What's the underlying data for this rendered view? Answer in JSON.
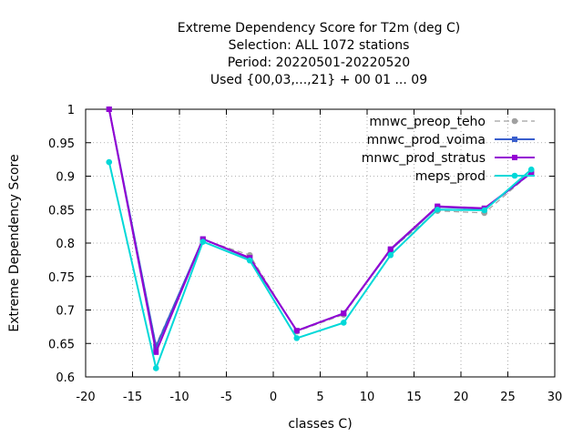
{
  "chart_data": {
    "type": "line",
    "title_lines": [
      "Extreme Dependency Score  for T2m (deg C)",
      "Selection: ALL    1072 stations",
      "Period: 20220501-20220520",
      "Used {00,03,...,21} + 00 01 ... 09"
    ],
    "xlabel": "classes C)",
    "ylabel": "Extreme Dependency Score",
    "xlim": [
      -20,
      30
    ],
    "ylim": [
      0.6,
      1.0
    ],
    "xticks": [
      -20,
      -15,
      -10,
      -5,
      0,
      5,
      10,
      15,
      20,
      25,
      30
    ],
    "yticks": [
      0.6,
      0.65,
      0.7,
      0.75,
      0.8,
      0.85,
      0.9,
      0.95,
      1.0
    ],
    "xtick_labels": [
      "-20",
      "-15",
      "-10",
      "-5",
      "0",
      "5",
      "10",
      "15",
      "20",
      "25",
      "30"
    ],
    "ytick_labels": [
      "0.6",
      "0.65",
      "0.7",
      "0.75",
      "0.8",
      "0.85",
      "0.9",
      "0.95",
      "1"
    ],
    "grid": true,
    "legend_position": "top-right",
    "x": [
      -17.5,
      -12.5,
      -7.5,
      -2.5,
      2.5,
      7.5,
      12.5,
      17.5,
      22.5,
      27.5
    ],
    "series": [
      {
        "name": "mnwc_preop_teho",
        "color": "#a0a0a0",
        "dashed": true,
        "marker": "circle",
        "values": [
          1.0,
          0.648,
          0.805,
          0.782,
          0.668,
          0.693,
          0.79,
          0.848,
          0.845,
          0.905
        ]
      },
      {
        "name": "mnwc_prod_voima",
        "color": "#3a5fcd",
        "dashed": false,
        "marker": "square",
        "values": [
          1.0,
          0.645,
          0.806,
          0.777,
          0.669,
          0.695,
          0.79,
          0.854,
          0.851,
          0.905
        ]
      },
      {
        "name": "mnwc_prod_stratus",
        "color": "#9400d3",
        "dashed": false,
        "marker": "square",
        "values": [
          1.0,
          0.637,
          0.806,
          0.778,
          0.669,
          0.695,
          0.791,
          0.855,
          0.852,
          0.905
        ]
      },
      {
        "name": "meps_prod",
        "color": "#00d8d8",
        "dashed": false,
        "marker": "circle",
        "values": [
          0.921,
          0.613,
          0.802,
          0.774,
          0.658,
          0.681,
          0.782,
          0.85,
          0.849,
          0.91
        ]
      }
    ]
  }
}
